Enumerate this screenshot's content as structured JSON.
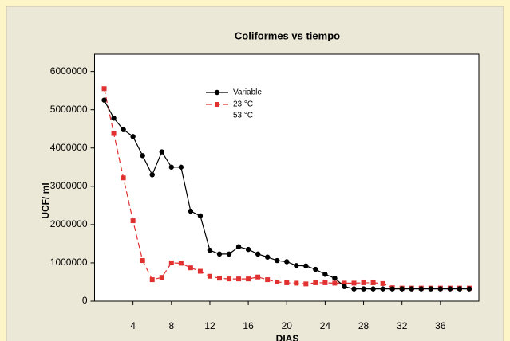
{
  "chart_data": {
    "type": "line",
    "title": "Coliformes vs tiempo",
    "x_label": "DIAS",
    "y_label": "UCF/ ml",
    "legend_title": "Variable",
    "x": [
      1,
      2,
      3,
      4,
      5,
      6,
      7,
      8,
      9,
      10,
      11,
      12,
      13,
      14,
      15,
      16,
      17,
      18,
      19,
      20,
      21,
      22,
      23,
      24,
      25,
      26,
      27,
      28,
      29,
      30,
      31,
      32,
      33,
      34,
      35,
      36,
      37,
      38,
      39
    ],
    "series": [
      {
        "name": "23 °C",
        "color": "#e03030",
        "dash": true,
        "marker": "square",
        "values": [
          5550000,
          4380000,
          3220000,
          2100000,
          1060000,
          560000,
          620000,
          1000000,
          990000,
          870000,
          780000,
          650000,
          600000,
          580000,
          580000,
          580000,
          630000,
          560000,
          500000,
          480000,
          470000,
          450000,
          480000,
          480000,
          470000,
          470000,
          470000,
          480000,
          480000,
          460000,
          350000,
          340000,
          340000,
          340000,
          340000,
          340000,
          340000,
          340000,
          340000
        ]
      },
      {
        "name": "53 °C",
        "color": "#000000",
        "dash": false,
        "marker": "circle",
        "values": [
          5250000,
          4780000,
          4480000,
          4300000,
          3800000,
          3300000,
          3900000,
          3500000,
          3500000,
          2350000,
          2230000,
          1330000,
          1230000,
          1230000,
          1420000,
          1350000,
          1230000,
          1150000,
          1060000,
          1030000,
          930000,
          920000,
          830000,
          700000,
          600000,
          380000,
          320000,
          320000,
          320000,
          320000,
          320000,
          320000,
          320000,
          320000,
          320000,
          320000,
          320000,
          320000,
          320000
        ]
      }
    ],
    "xlim": [
      0,
      40
    ],
    "ylim": [
      0,
      6450000
    ],
    "xticks": [
      4,
      8,
      12,
      16,
      20,
      24,
      28,
      32,
      36
    ],
    "yticks": [
      0,
      1000000,
      2000000,
      3000000,
      4000000,
      5000000,
      6000000
    ]
  }
}
